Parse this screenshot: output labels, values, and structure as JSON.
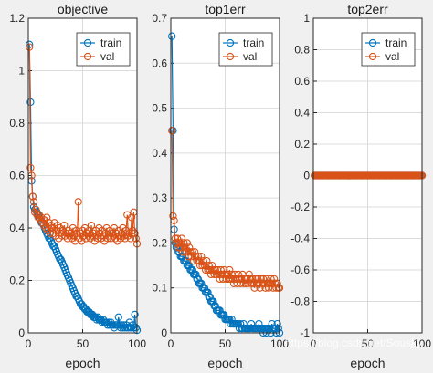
{
  "watermark": "https://blog.csdn.net/Sousky",
  "colors": {
    "train": "#0072bd",
    "val": "#d95319",
    "grid": "#dcdcdc",
    "axis": "#262626",
    "bg": "#f0f0f0"
  },
  "chart_data": [
    {
      "type": "line",
      "title": "objective",
      "xlabel": "epoch",
      "xlim": [
        0,
        100
      ],
      "ylim": [
        0,
        1.2
      ],
      "xticks": [
        "0",
        "50",
        "100"
      ],
      "yticks": [
        "0",
        "0.2",
        "0.4",
        "0.6",
        "0.8",
        "1",
        "1.2"
      ],
      "grid": true,
      "legend": "top-right",
      "series": [
        {
          "name": "train",
          "marker": "circle",
          "y": [
            1.1,
            0.88,
            0.58,
            0.52,
            0.48,
            0.47,
            0.47,
            0.46,
            0.45,
            0.44,
            0.43,
            0.42,
            0.42,
            0.41,
            0.4,
            0.39,
            0.38,
            0.37,
            0.36,
            0.36,
            0.35,
            0.34,
            0.33,
            0.33,
            0.32,
            0.31,
            0.3,
            0.29,
            0.28,
            0.28,
            0.27,
            0.26,
            0.25,
            0.24,
            0.23,
            0.22,
            0.21,
            0.2,
            0.19,
            0.18,
            0.17,
            0.16,
            0.15,
            0.14,
            0.14,
            0.13,
            0.12,
            0.11,
            0.11,
            0.1,
            0.1,
            0.09,
            0.09,
            0.08,
            0.08,
            0.08,
            0.07,
            0.07,
            0.07,
            0.06,
            0.06,
            0.06,
            0.05,
            0.06,
            0.05,
            0.05,
            0.05,
            0.04,
            0.05,
            0.04,
            0.04,
            0.04,
            0.03,
            0.04,
            0.03,
            0.04,
            0.03,
            0.03,
            0.02,
            0.03,
            0.03,
            0.03,
            0.06,
            0.03,
            0.02,
            0.03,
            0.02,
            0.03,
            0.02,
            0.03,
            0.02,
            0.02,
            0.04,
            0.02,
            0.02,
            0.03,
            0.02,
            0.07,
            0.02,
            0.01
          ]
        },
        {
          "name": "val",
          "marker": "circle",
          "y": [
            1.09,
            0.63,
            0.6,
            0.52,
            0.5,
            0.46,
            0.47,
            0.45,
            0.44,
            0.45,
            0.43,
            0.44,
            0.42,
            0.41,
            0.43,
            0.4,
            0.44,
            0.39,
            0.42,
            0.38,
            0.41,
            0.4,
            0.38,
            0.42,
            0.37,
            0.39,
            0.41,
            0.36,
            0.4,
            0.38,
            0.37,
            0.39,
            0.41,
            0.37,
            0.38,
            0.36,
            0.39,
            0.37,
            0.38,
            0.36,
            0.4,
            0.37,
            0.35,
            0.39,
            0.38,
            0.5,
            0.36,
            0.38,
            0.35,
            0.39,
            0.37,
            0.4,
            0.36,
            0.38,
            0.37,
            0.39,
            0.36,
            0.41,
            0.37,
            0.38,
            0.35,
            0.39,
            0.37,
            0.36,
            0.4,
            0.38,
            0.36,
            0.39,
            0.37,
            0.35,
            0.38,
            0.4,
            0.36,
            0.37,
            0.39,
            0.36,
            0.38,
            0.37,
            0.4,
            0.36,
            0.38,
            0.35,
            0.39,
            0.37,
            0.36,
            0.38,
            0.4,
            0.37,
            0.36,
            0.39,
            0.45,
            0.37,
            0.38,
            0.36,
            0.44,
            0.39,
            0.46,
            0.38,
            0.36,
            0.34
          ]
        }
      ]
    },
    {
      "type": "line",
      "title": "top1err",
      "xlabel": "epoch",
      "xlim": [
        0,
        100
      ],
      "ylim": [
        0,
        0.7
      ],
      "xticks": [
        "0",
        "50",
        "100"
      ],
      "yticks": [
        "0",
        "0.1",
        "0.2",
        "0.3",
        "0.4",
        "0.5",
        "0.6",
        "0.7"
      ],
      "grid": true,
      "legend": "top-right",
      "series": [
        {
          "name": "train",
          "marker": "circle",
          "y": [
            0.66,
            0.45,
            0.23,
            0.2,
            0.19,
            0.19,
            0.18,
            0.18,
            0.17,
            0.17,
            0.17,
            0.16,
            0.16,
            0.16,
            0.15,
            0.15,
            0.15,
            0.14,
            0.14,
            0.14,
            0.13,
            0.13,
            0.13,
            0.12,
            0.12,
            0.11,
            0.11,
            0.11,
            0.1,
            0.1,
            0.1,
            0.09,
            0.09,
            0.09,
            0.08,
            0.08,
            0.07,
            0.07,
            0.07,
            0.06,
            0.06,
            0.05,
            0.05,
            0.05,
            0.05,
            0.04,
            0.04,
            0.04,
            0.04,
            0.03,
            0.03,
            0.03,
            0.03,
            0.03,
            0.02,
            0.03,
            0.02,
            0.02,
            0.02,
            0.02,
            0.02,
            0.02,
            0.01,
            0.02,
            0.01,
            0.01,
            0.02,
            0.01,
            0.01,
            0.01,
            0.01,
            0.01,
            0.01,
            0.02,
            0.01,
            0.01,
            0.01,
            0.01,
            0.01,
            0.01,
            0.02,
            0.01,
            0.01,
            0.01,
            0.0,
            0.01,
            0.01,
            0.0,
            0.01,
            0.01,
            0.01,
            0.0,
            0.02,
            0.01,
            0.01,
            0.01,
            0.0,
            0.02,
            0.01,
            0.0
          ]
        },
        {
          "name": "val",
          "marker": "circle",
          "y": [
            0.45,
            0.26,
            0.25,
            0.21,
            0.2,
            0.21,
            0.19,
            0.2,
            0.19,
            0.21,
            0.18,
            0.2,
            0.19,
            0.18,
            0.2,
            0.17,
            0.19,
            0.18,
            0.17,
            0.18,
            0.16,
            0.18,
            0.17,
            0.16,
            0.17,
            0.16,
            0.15,
            0.17,
            0.15,
            0.16,
            0.15,
            0.14,
            0.16,
            0.14,
            0.15,
            0.14,
            0.13,
            0.15,
            0.14,
            0.13,
            0.14,
            0.13,
            0.14,
            0.13,
            0.12,
            0.14,
            0.13,
            0.12,
            0.14,
            0.13,
            0.12,
            0.13,
            0.12,
            0.14,
            0.12,
            0.13,
            0.12,
            0.11,
            0.13,
            0.12,
            0.11,
            0.13,
            0.12,
            0.11,
            0.12,
            0.13,
            0.11,
            0.12,
            0.11,
            0.12,
            0.11,
            0.13,
            0.12,
            0.11,
            0.12,
            0.11,
            0.1,
            0.12,
            0.11,
            0.12,
            0.11,
            0.1,
            0.12,
            0.11,
            0.12,
            0.11,
            0.1,
            0.12,
            0.11,
            0.1,
            0.11,
            0.12,
            0.11,
            0.1,
            0.12,
            0.11,
            0.1,
            0.11,
            0.1,
            0.1
          ]
        }
      ]
    },
    {
      "type": "line",
      "title": "top2err",
      "xlabel": "epoch",
      "xlim": [
        0,
        100
      ],
      "ylim": [
        -1,
        1
      ],
      "xticks": [
        "0",
        "50",
        "100"
      ],
      "yticks": [
        "-1",
        "-0.8",
        "-0.6",
        "-0.4",
        "-0.2",
        "0",
        "0.2",
        "0.4",
        "0.6",
        "0.8",
        "1"
      ],
      "grid": true,
      "legend": "top-right",
      "series": [
        {
          "name": "train",
          "marker": "circle",
          "constant": 0,
          "count": 100
        },
        {
          "name": "val",
          "marker": "circle",
          "constant": 0,
          "count": 100
        }
      ]
    }
  ]
}
